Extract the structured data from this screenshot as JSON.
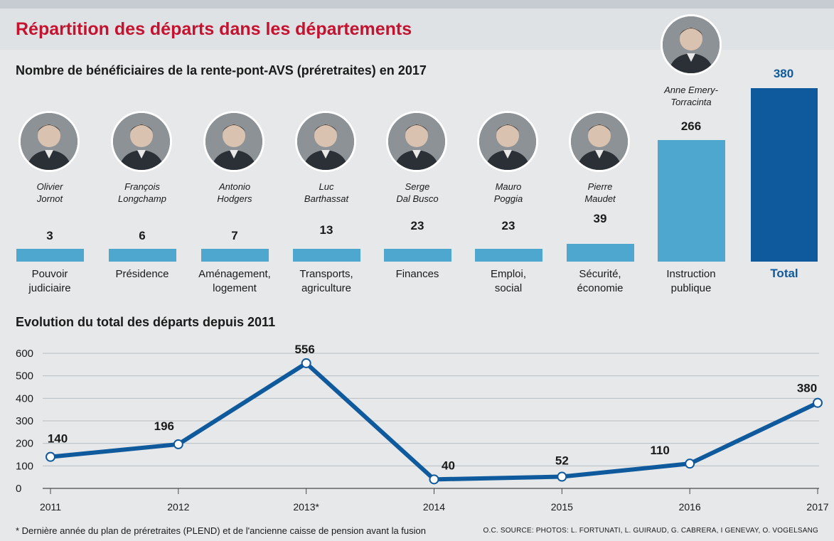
{
  "header": {
    "title": "Répartition des départs dans les départements",
    "bar_subtitle": "Nombre de bénéficiaires de la rente-pont-AVS (préretraites) en 2017",
    "line_subtitle": "Evolution du total des départs depuis 2011"
  },
  "colors": {
    "title_red": "#c4122f",
    "bar_light": "#4ea7cf",
    "bar_dark": "#0f5a9c",
    "line": "#0f5a9c"
  },
  "departments": [
    {
      "person_first": "Olivier",
      "person_last": "Jornot",
      "line1": "Pouvoir",
      "line2": "judiciaire",
      "value": "3"
    },
    {
      "person_first": "François",
      "person_last": "Longchamp",
      "line1": "Présidence",
      "line2": "",
      "value": "6"
    },
    {
      "person_first": "Antonio",
      "person_last": "Hodgers",
      "line1": "Aménagement,",
      "line2": "logement",
      "value": "7"
    },
    {
      "person_first": "Luc",
      "person_last": "Barthassat",
      "line1": "Transports,",
      "line2": "agriculture",
      "value": "13"
    },
    {
      "person_first": "Serge",
      "person_last": "Dal Busco",
      "line1": "Finances",
      "line2": "",
      "value": "23"
    },
    {
      "person_first": "Mauro",
      "person_last": "Poggia",
      "line1": "Emploi,",
      "line2": "social",
      "value": "23"
    },
    {
      "person_first": "Pierre",
      "person_last": "Maudet",
      "line1": "Sécurité,",
      "line2": "économie",
      "value": "39"
    },
    {
      "person_first": "Anne Emery-",
      "person_last": "Torracinta",
      "line1": "Instruction",
      "line2": "publique",
      "value": "266"
    }
  ],
  "total": {
    "label": "Total",
    "value": "380"
  },
  "chart_data": {
    "type": "line",
    "title": "Evolution du total des départs depuis 2011",
    "x": [
      "2011",
      "2012",
      "2013*",
      "2014",
      "2015",
      "2016",
      "2017"
    ],
    "values": [
      140,
      196,
      556,
      40,
      52,
      110,
      380
    ],
    "data_labels": [
      "140",
      "196",
      "556",
      "40",
      "52",
      "110",
      "380"
    ],
    "yticks": [
      0,
      100,
      200,
      300,
      400,
      500,
      600
    ],
    "ylim": [
      0,
      600
    ],
    "xlabel": "",
    "ylabel": "",
    "grid": true
  },
  "footer": {
    "footnote": "* Dernière année du plan de préretraites (PLEND) et de l'ancienne caisse de pension avant la fusion",
    "credits": "O.C.   SOURCE:  PHOTOS: L. FORTUNATI, L. GUIRAUD, G. CABRERA, I GENEVAY, O. VOGELSANG"
  }
}
